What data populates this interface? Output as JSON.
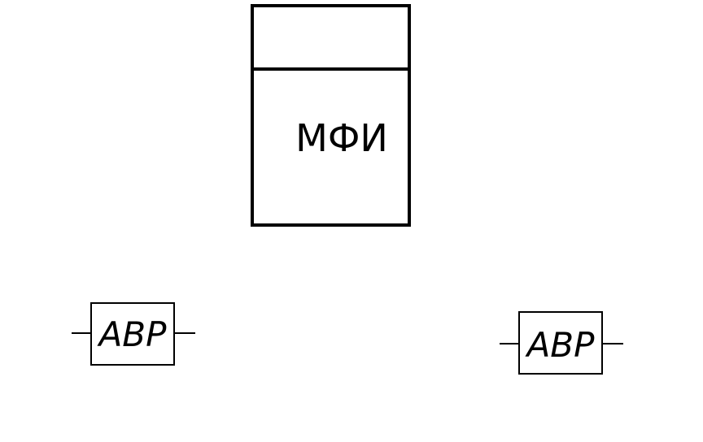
{
  "diagram": {
    "main_block": {
      "label": "МФИ"
    },
    "devices": [
      {
        "label": "ABP"
      },
      {
        "label": "ABP"
      }
    ]
  },
  "colors": {
    "line": "#000000",
    "background": "#ffffff"
  }
}
